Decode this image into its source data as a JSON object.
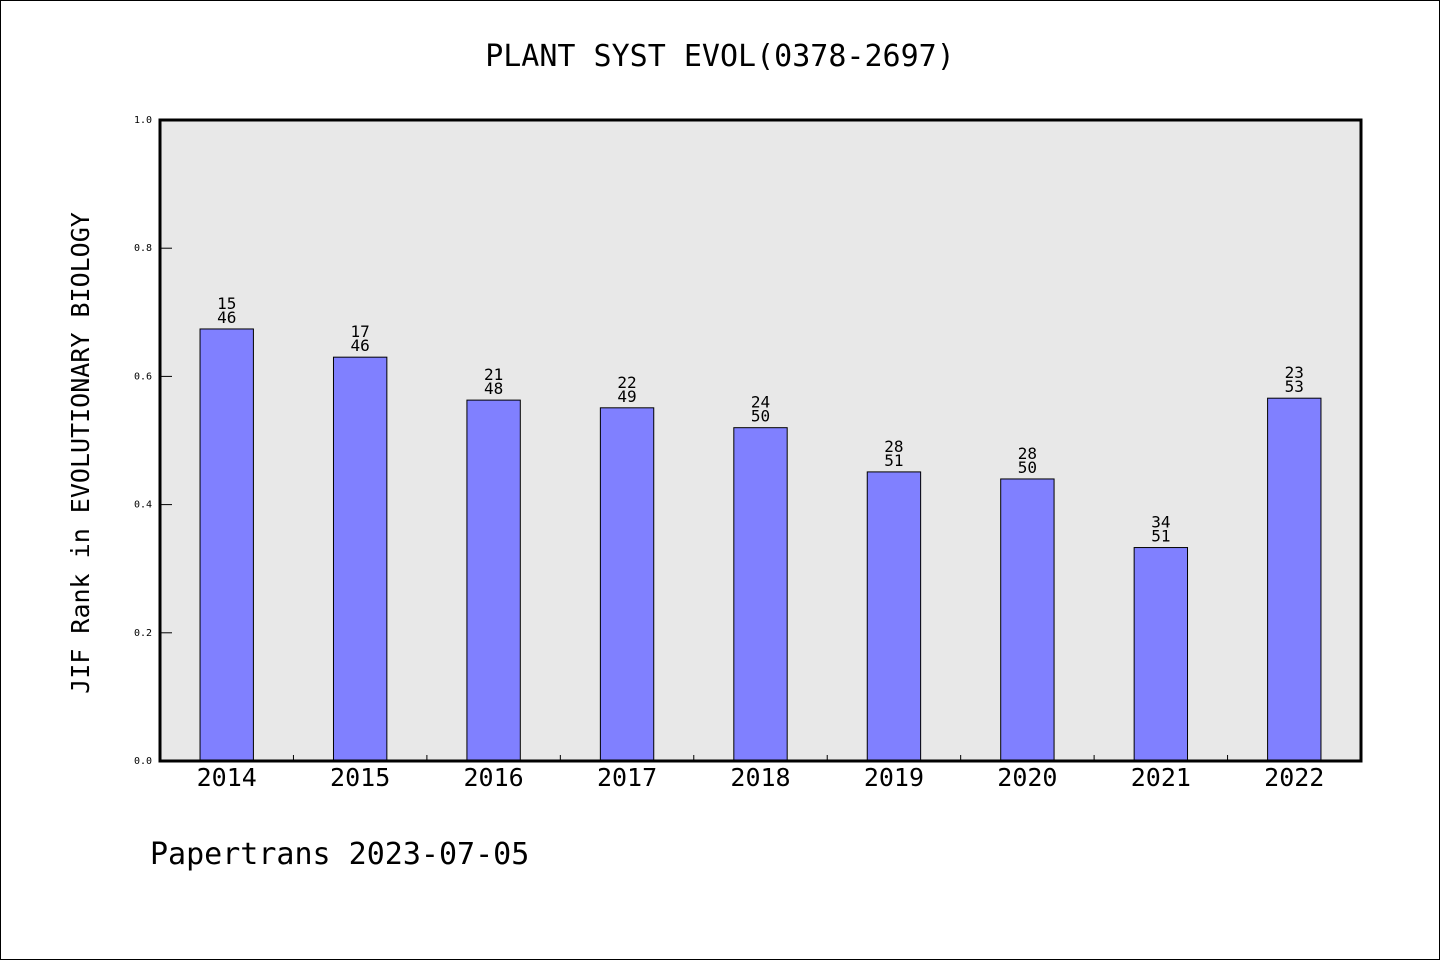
{
  "chart_data": {
    "type": "bar",
    "title": "PLANT SYST EVOL(0378-2697)",
    "ylabel": "JIF Rank in EVOLUTIONARY BIOLOGY",
    "xlabel": "",
    "ylim": [
      0.0,
      1.0
    ],
    "yticks": [
      "0.0",
      "0.2",
      "0.4",
      "0.6",
      "0.8",
      "1.0"
    ],
    "grid": false,
    "categories": [
      "2014",
      "2015",
      "2016",
      "2017",
      "2018",
      "2019",
      "2020",
      "2021",
      "2022"
    ],
    "values": [
      0.674,
      0.63,
      0.563,
      0.551,
      0.52,
      0.451,
      0.44,
      0.333,
      0.566
    ],
    "rank_labels": [
      [
        "15",
        "46"
      ],
      [
        "17",
        "46"
      ],
      [
        "21",
        "48"
      ],
      [
        "22",
        "49"
      ],
      [
        "24",
        "50"
      ],
      [
        "28",
        "51"
      ],
      [
        "28",
        "50"
      ],
      [
        "34",
        "51"
      ],
      [
        "23",
        "53"
      ]
    ],
    "colors": {
      "bar_fill": "#8080ff",
      "plot_background": "#e8e8e8",
      "axis": "#000000"
    }
  },
  "footer": "Papertrans 2023-07-05"
}
